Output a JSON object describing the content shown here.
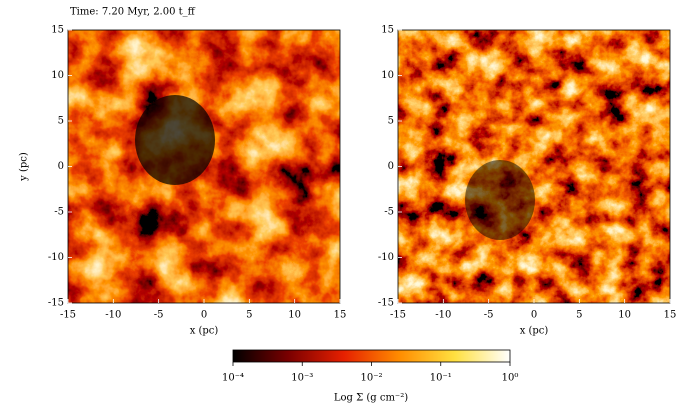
{
  "chart_data": {
    "type": "heatmap",
    "title": "Time: 7.20 Myr, 2.00 t_ff",
    "panels": [
      {
        "xlabel": "x (pc)",
        "ylabel": "y (pc)",
        "xlim": [
          -15,
          15
        ],
        "ylim": [
          -15,
          15
        ],
        "xticks": [
          -15,
          -10,
          -5,
          0,
          5,
          10,
          15
        ],
        "yticks": [
          -15,
          -10,
          -5,
          0,
          5,
          10,
          15
        ]
      },
      {
        "xlabel": "x (pc)",
        "xlim": [
          -15,
          15
        ],
        "ylim": [
          -15,
          15
        ],
        "xticks": [
          -15,
          -10,
          -5,
          0,
          5,
          10,
          15
        ],
        "yticks": [
          -15,
          -10,
          -5,
          0,
          5,
          10,
          15
        ]
      }
    ],
    "colorbar": {
      "label": "Log Σ (g cm⁻²)",
      "lim": [
        0.0001,
        1
      ],
      "log": true,
      "colors": [
        "#000000",
        "#7a0000",
        "#e62000",
        "#ff8c00",
        "#ffe040",
        "#ffffff"
      ],
      "ticks": [
        {
          "value": 0.0001,
          "label": "10⁻⁴"
        },
        {
          "value": 0.001,
          "label": "10⁻³"
        },
        {
          "value": 0.01,
          "label": "10⁻²"
        },
        {
          "value": 0.1,
          "label": "10⁻¹"
        },
        {
          "value": 1,
          "label": "10⁰"
        }
      ]
    }
  }
}
